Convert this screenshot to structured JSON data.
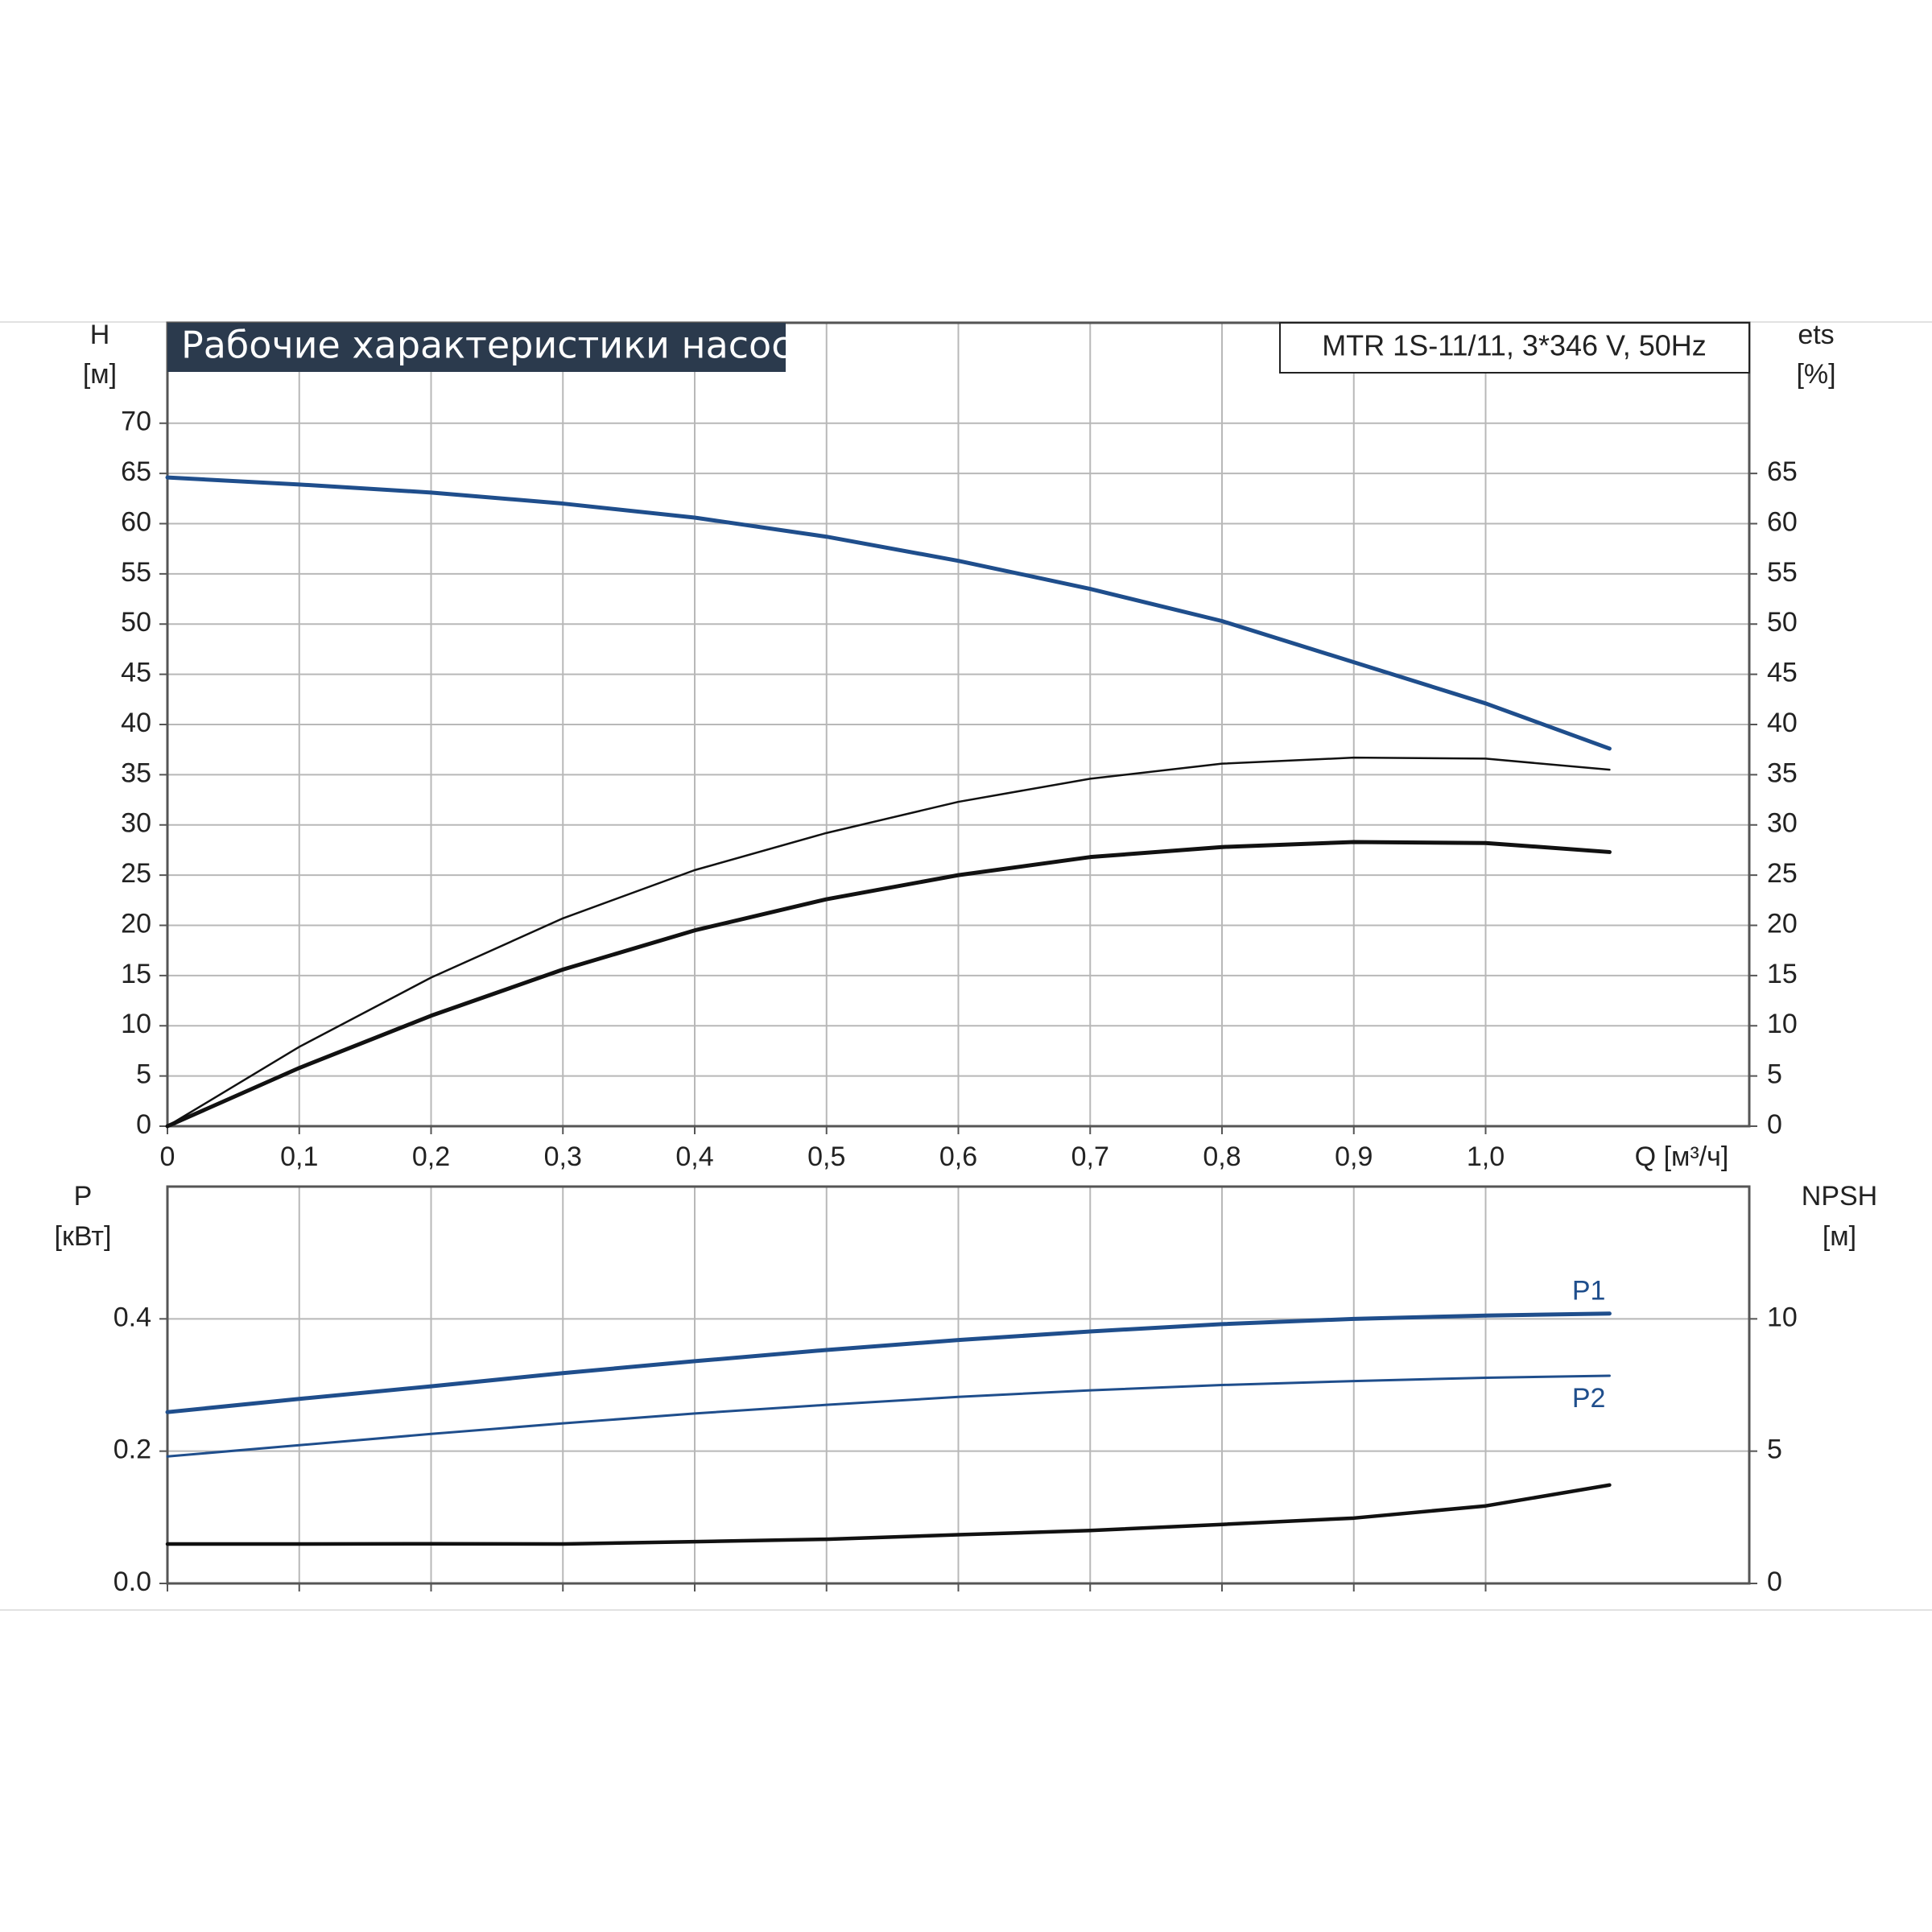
{
  "chart_data": [
    {
      "type": "line",
      "title": "Рабочие характеристики насоса",
      "subtitle": "MTR 1S-11/11, 3*346 V, 50Hz",
      "ylabel": "H",
      "yunit": "[м]",
      "y2label": "ets",
      "y2unit": "[%]",
      "xlabel": "Q [м³/ч]",
      "x": [
        0,
        0.1,
        0.2,
        0.3,
        0.4,
        0.5,
        0.6,
        0.7,
        0.8,
        0.9,
        1.0,
        1.094
      ],
      "series": [
        {
          "color": "#1f4e8c",
          "values": [
            64.6,
            63.9,
            63.1,
            62.0,
            60.6,
            58.7,
            56.3,
            53.5,
            50.3,
            46.2,
            42.1,
            37.6
          ]
        },
        {
          "color": "#111111",
          "axis": "y2",
          "values": [
            0,
            7.9,
            14.8,
            20.7,
            25.5,
            29.2,
            32.3,
            34.6,
            36.1,
            36.7,
            36.6,
            35.5
          ]
        },
        {
          "color": "#111111",
          "axis": "y2",
          "values": [
            0,
            5.8,
            11.0,
            15.6,
            19.5,
            22.6,
            25.0,
            26.8,
            27.8,
            28.3,
            28.2,
            27.3
          ]
        }
      ],
      "xlim": [
        0,
        1.2
      ],
      "xticks": [
        0,
        {
          "value": 0.1,
          "label": "0,1"
        },
        {
          "value": 0.2,
          "label": "0,2"
        },
        {
          "value": 0.3,
          "label": "0,3"
        },
        {
          "value": 0.4,
          "label": "0,4"
        },
        {
          "value": 0.5,
          "label": "0,5"
        },
        {
          "value": 0.6,
          "label": "0,6"
        },
        {
          "value": 0.7,
          "label": "0,7"
        },
        {
          "value": 0.8,
          "label": "0,8"
        },
        {
          "value": 0.9,
          "label": "0,9"
        },
        {
          "value": 1.0,
          "label": "1,0"
        }
      ],
      "ylim": [
        0,
        80
      ],
      "yticks": [
        0,
        5,
        10,
        15,
        20,
        25,
        30,
        35,
        40,
        45,
        50,
        55,
        60,
        65,
        70
      ],
      "y2lim": [
        0,
        80
      ],
      "y2ticks": [
        0,
        5,
        10,
        15,
        20,
        25,
        30,
        35,
        40,
        45,
        50,
        55,
        60,
        65
      ],
      "grid": true
    },
    {
      "type": "line",
      "ylabel": "P",
      "yunit": "[кВт]",
      "y2label": "NPSH",
      "y2unit": "[м]",
      "x": [
        0,
        0.1,
        0.2,
        0.3,
        0.4,
        0.5,
        0.6,
        0.7,
        0.8,
        0.9,
        1.0,
        1.094
      ],
      "series": [
        {
          "name": "P1",
          "color": "#1f4e8c",
          "values": [
            0.259,
            0.279,
            0.298,
            0.318,
            0.336,
            0.353,
            0.368,
            0.381,
            0.392,
            0.4,
            0.405,
            0.408
          ]
        },
        {
          "name": "P2",
          "color": "#1f4e8c",
          "values": [
            0.192,
            0.209,
            0.226,
            0.242,
            0.257,
            0.27,
            0.282,
            0.292,
            0.3,
            0.306,
            0.311,
            0.314
          ]
        },
        {
          "color": "#111111",
          "axis": "y2",
          "values": [
            1.49,
            1.49,
            1.5,
            1.49,
            1.58,
            1.67,
            1.84,
            2.0,
            2.23,
            2.47,
            2.93,
            3.72
          ]
        }
      ],
      "xlim": [
        0,
        1.2
      ],
      "ylim": [
        0,
        0.6
      ],
      "yticks": [
        {
          "value": 0,
          "label": "0.0"
        },
        0.2,
        0.4
      ],
      "y2lim": [
        0,
        15
      ],
      "y2ticks": [
        0,
        5,
        10
      ],
      "grid": true
    }
  ]
}
